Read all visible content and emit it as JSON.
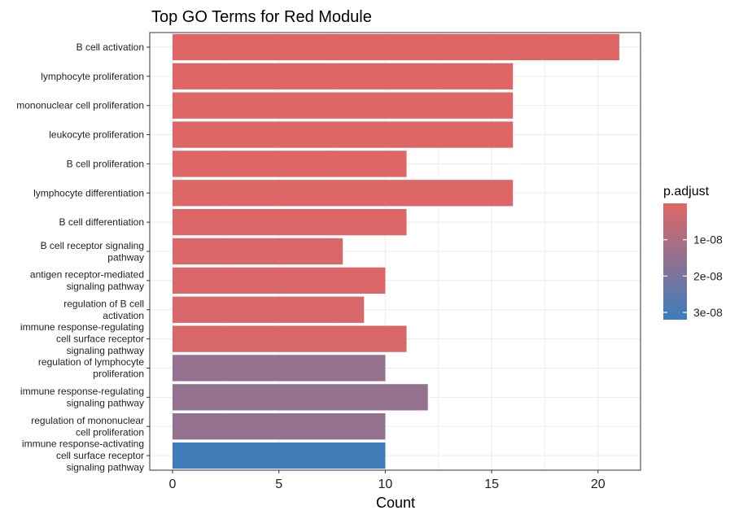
{
  "chart_data": {
    "type": "bar",
    "orientation": "horizontal",
    "title": "Top GO Terms for Red Module",
    "xlabel": "Count",
    "ylabel": "",
    "xlim": [
      0,
      22
    ],
    "xticks": [
      0,
      5,
      10,
      15,
      20
    ],
    "grid": true,
    "categories": [
      [
        "B cell activation"
      ],
      [
        "lymphocyte proliferation"
      ],
      [
        "mononuclear cell proliferation"
      ],
      [
        "leukocyte proliferation"
      ],
      [
        "B cell proliferation"
      ],
      [
        "lymphocyte differentiation"
      ],
      [
        "B cell differentiation"
      ],
      [
        "B cell receptor signaling",
        "pathway"
      ],
      [
        "antigen receptor-mediated",
        "signaling pathway"
      ],
      [
        "regulation of B cell",
        "activation"
      ],
      [
        "immune response-regulating",
        "cell surface receptor",
        "signaling pathway"
      ],
      [
        "regulation of lymphocyte",
        "proliferation"
      ],
      [
        "immune response-regulating",
        "signaling pathway"
      ],
      [
        "regulation of mononuclear",
        "cell proliferation"
      ],
      [
        "immune response-activating",
        "cell surface receptor",
        "signaling pathway"
      ]
    ],
    "values": [
      21,
      16,
      16,
      16,
      11,
      16,
      11,
      8,
      10,
      9,
      11,
      10,
      12,
      10,
      10
    ],
    "p_adjust": [
      1e-10,
      2e-10,
      2e-10,
      3e-10,
      4e-10,
      5e-10,
      6e-10,
      8e-10,
      1e-09,
      1.2e-09,
      1.5e-09,
      1.5e-08,
      1.5e-08,
      1.5e-08,
      3.1e-08
    ],
    "legend": {
      "title": "p.adjust",
      "position": "right",
      "min": 0,
      "max": 3.2e-08,
      "ticks": [
        {
          "value": 1e-08,
          "label": "1e-08"
        },
        {
          "value": 2e-08,
          "label": "2e-08"
        },
        {
          "value": 3e-08,
          "label": "3e-08"
        }
      ],
      "low_color": "#E06666",
      "high_color": "#3B7DBD"
    }
  },
  "colors": {
    "panel_border": "#333333",
    "grid": "#EBEBEB"
  }
}
